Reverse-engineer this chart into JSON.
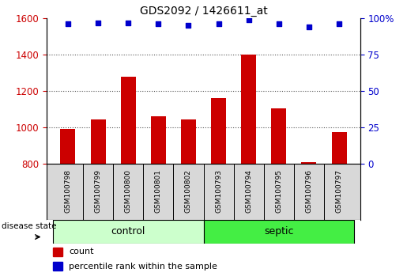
{
  "title": "GDS2092 / 1426611_at",
  "samples": [
    "GSM100798",
    "GSM100799",
    "GSM100800",
    "GSM100801",
    "GSM100802",
    "GSM100793",
    "GSM100794",
    "GSM100795",
    "GSM100796",
    "GSM100797"
  ],
  "counts": [
    990,
    1045,
    1280,
    1060,
    1045,
    1160,
    1400,
    1105,
    810,
    975
  ],
  "percentiles": [
    96,
    97,
    97,
    96,
    95,
    96,
    99,
    96,
    94,
    96
  ],
  "ylim_left": [
    800,
    1600
  ],
  "ylim_right": [
    0,
    100
  ],
  "yticks_left": [
    800,
    1000,
    1200,
    1400,
    1600
  ],
  "yticks_right": [
    0,
    25,
    50,
    75,
    100
  ],
  "bar_color": "#cc0000",
  "scatter_color": "#0000cc",
  "control_color": "#ccffcc",
  "septic_color": "#44ee44",
  "grid_color": "#555555",
  "bg_color": "#ffffff",
  "label_area_color": "#d8d8d8",
  "legend_count_label": "count",
  "legend_percentile_label": "percentile rank within the sample",
  "disease_state_label": "disease state",
  "n_control": 5,
  "n_septic": 5
}
